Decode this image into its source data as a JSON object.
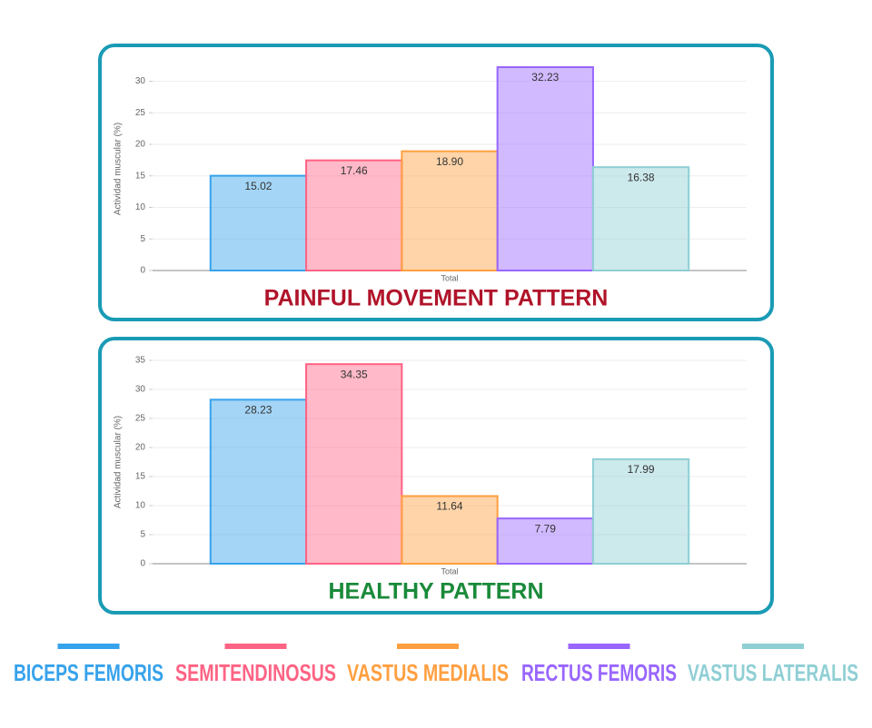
{
  "chart_data": [
    {
      "type": "bar",
      "title": "PAINFUL MOVEMENT PATTERN",
      "title_color": "#b0142a",
      "y_label": "Actividad muscular (%)",
      "categories": [
        "Total"
      ],
      "ylim": [
        0,
        32.23
      ],
      "yticks": [
        0,
        5,
        10,
        15,
        20,
        25,
        30
      ],
      "grid": true,
      "series": [
        {
          "name": "BICEPS FEMORIS",
          "color": "#36a2eb",
          "values": [
            15.02
          ]
        },
        {
          "name": "SEMITENDINOSUS",
          "color": "#ff6384",
          "values": [
            17.46
          ]
        },
        {
          "name": "VASTUS MEDIALIS",
          "color": "#ff9f40",
          "values": [
            18.9
          ],
          "value_labels": [
            "18.90"
          ]
        },
        {
          "name": "RECTUS FEMORIS",
          "color": "#9966ff",
          "values": [
            32.23
          ]
        },
        {
          "name": "VASTUS LATERALIS",
          "color": "#8fcfd4",
          "values": [
            16.38
          ]
        }
      ]
    },
    {
      "type": "bar",
      "title": "HEALTHY PATTERN",
      "title_color": "#1a8a3a",
      "y_label": "Actividad muscular (%)",
      "categories": [
        "Total"
      ],
      "ylim": [
        0,
        35
      ],
      "yticks": [
        0,
        5,
        10,
        15,
        20,
        25,
        30,
        35
      ],
      "grid": true,
      "series": [
        {
          "color": "#36a2eb",
          "values": [
            28.23
          ]
        },
        {
          "color": "#ff6384",
          "values": [
            34.35
          ]
        },
        {
          "color": "#ff9f40",
          "values": [
            11.64
          ]
        },
        {
          "color": "#9966ff",
          "values": [
            7.79
          ]
        },
        {
          "color": "#8fcfd4",
          "values": [
            17.99
          ]
        }
      ]
    }
  ]
}
